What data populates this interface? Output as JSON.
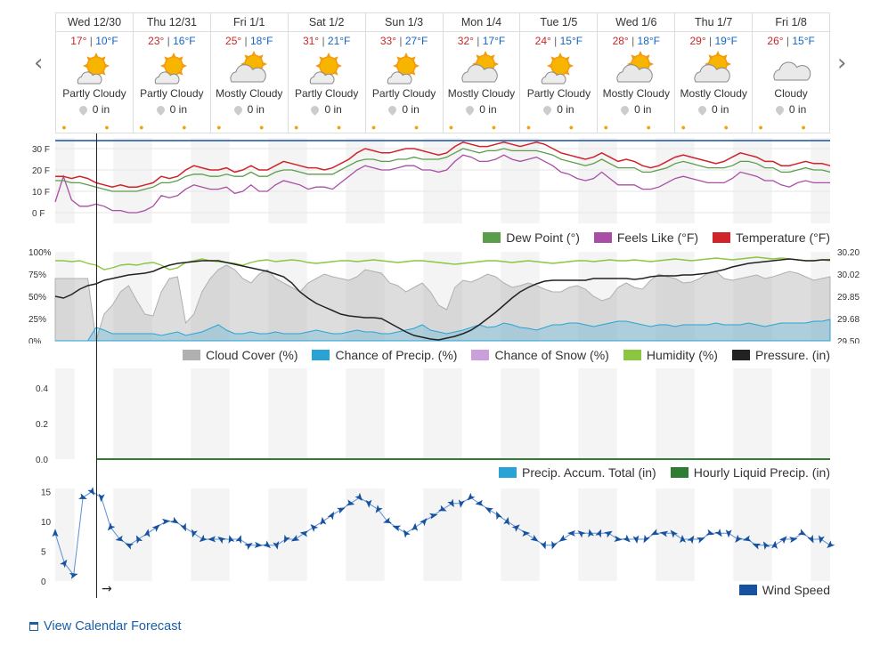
{
  "days": [
    {
      "date": "Wed 12/30",
      "hi": "17°",
      "lo": "10°F",
      "cond": "Partly Cloudy",
      "precip": "0 in",
      "icon": "partly-cloudy-icon"
    },
    {
      "date": "Thu 12/31",
      "hi": "23°",
      "lo": "16°F",
      "cond": "Partly Cloudy",
      "precip": "0 in",
      "icon": "partly-cloudy-icon"
    },
    {
      "date": "Fri 1/1",
      "hi": "25°",
      "lo": "18°F",
      "cond": "Mostly Cloudy",
      "precip": "0 in",
      "icon": "mostly-cloudy-icon"
    },
    {
      "date": "Sat 1/2",
      "hi": "31°",
      "lo": "21°F",
      "cond": "Partly Cloudy",
      "precip": "0 in",
      "icon": "partly-cloudy-icon"
    },
    {
      "date": "Sun 1/3",
      "hi": "33°",
      "lo": "27°F",
      "cond": "Partly Cloudy",
      "precip": "0 in",
      "icon": "partly-cloudy-icon"
    },
    {
      "date": "Mon 1/4",
      "hi": "32°",
      "lo": "17°F",
      "cond": "Mostly Cloudy",
      "precip": "0 in",
      "icon": "mostly-cloudy-icon"
    },
    {
      "date": "Tue 1/5",
      "hi": "24°",
      "lo": "15°F",
      "cond": "Partly Cloudy",
      "precip": "0 in",
      "icon": "partly-cloudy-icon"
    },
    {
      "date": "Wed 1/6",
      "hi": "28°",
      "lo": "18°F",
      "cond": "Mostly Cloudy",
      "precip": "0 in",
      "icon": "mostly-cloudy-icon"
    },
    {
      "date": "Thu 1/7",
      "hi": "29°",
      "lo": "19°F",
      "cond": "Mostly Cloudy",
      "precip": "0 in",
      "icon": "mostly-cloudy-icon"
    },
    {
      "date": "Fri 1/8",
      "hi": "26°",
      "lo": "15°F",
      "cond": "Cloudy",
      "precip": "0 in",
      "icon": "cloudy-icon"
    }
  ],
  "nav": {
    "prev": "‹",
    "next": "›"
  },
  "temp_chart": {
    "yticks": [
      "30 F",
      "20 F",
      "10 F",
      "0 F"
    ],
    "legend": [
      {
        "label": "Dew Point (°)",
        "color": "#5a9e4b"
      },
      {
        "label": "Feels Like (°F)",
        "color": "#a94ea5"
      },
      {
        "label": "Temperature (°F)",
        "color": "#d0232a"
      }
    ],
    "temperature": [
      17,
      17,
      16,
      17,
      16,
      14,
      13,
      12,
      13,
      12,
      12,
      13,
      14,
      17,
      16,
      17,
      20,
      22,
      21,
      20,
      20,
      21,
      19,
      20,
      22,
      20,
      20,
      22,
      24,
      23,
      22,
      21,
      21,
      20,
      21,
      23,
      25,
      28,
      30,
      29,
      28,
      28,
      29,
      30,
      30,
      29,
      28,
      27,
      28,
      31,
      33,
      32,
      31,
      31,
      32,
      33,
      32,
      31,
      32,
      33,
      32,
      30,
      28,
      27,
      26,
      25,
      26,
      28,
      26,
      24,
      25,
      24,
      22,
      21,
      22,
      24,
      26,
      27,
      26,
      25,
      24,
      23,
      24,
      26,
      28,
      27,
      26,
      24,
      24,
      22,
      22,
      23,
      24,
      23,
      23,
      22
    ],
    "dewpoint": [
      15,
      15,
      14,
      14,
      13,
      12,
      11,
      10,
      10,
      10,
      10,
      11,
      12,
      14,
      14,
      15,
      17,
      18,
      18,
      17,
      17,
      18,
      17,
      17,
      19,
      17,
      17,
      19,
      20,
      20,
      19,
      18,
      18,
      18,
      18,
      20,
      22,
      24,
      25,
      25,
      24,
      24,
      25,
      25,
      26,
      25,
      25,
      25,
      26,
      28,
      30,
      29,
      28,
      29,
      29,
      30,
      29,
      29,
      29,
      29,
      28,
      27,
      25,
      24,
      23,
      22,
      23,
      25,
      23,
      21,
      21,
      21,
      19,
      19,
      20,
      21,
      23,
      24,
      23,
      22,
      21,
      21,
      21,
      22,
      24,
      24,
      23,
      21,
      21,
      19,
      19,
      20,
      21,
      20,
      20,
      19
    ],
    "feelslike": [
      5,
      17,
      6,
      3,
      3,
      4,
      3,
      1,
      1,
      0,
      0,
      1,
      3,
      8,
      7,
      8,
      11,
      13,
      12,
      11,
      11,
      12,
      9,
      10,
      13,
      10,
      10,
      13,
      15,
      14,
      13,
      11,
      12,
      12,
      11,
      14,
      17,
      20,
      22,
      21,
      20,
      20,
      21,
      22,
      22,
      20,
      20,
      19,
      20,
      24,
      27,
      26,
      24,
      24,
      25,
      27,
      25,
      24,
      25,
      26,
      24,
      22,
      19,
      18,
      16,
      15,
      16,
      19,
      16,
      13,
      13,
      13,
      11,
      11,
      12,
      14,
      16,
      17,
      16,
      15,
      14,
      14,
      14,
      16,
      19,
      18,
      17,
      15,
      15,
      13,
      12,
      14,
      15,
      14,
      14,
      14
    ]
  },
  "cloud_chart": {
    "yticks_left": [
      "100%",
      "75%",
      "50%",
      "25%",
      "0%"
    ],
    "yticks_right": [
      "30.20",
      "30.02",
      "29.85",
      "29.68",
      "29.50"
    ],
    "legend": [
      {
        "label": "Cloud Cover (%)",
        "color": "#b0b0b0"
      },
      {
        "label": "Chance of Precip. (%)",
        "color": "#29a3d6"
      },
      {
        "label": "Chance of Snow (%)",
        "color": "#c9a0dc"
      },
      {
        "label": "Humidity (%)",
        "color": "#8cc63f"
      },
      {
        "label": "Pressure. (in)",
        "color": "#222222"
      }
    ],
    "cloud": [
      70,
      70,
      70,
      70,
      70,
      0,
      30,
      40,
      55,
      62,
      45,
      30,
      28,
      55,
      70,
      72,
      20,
      30,
      55,
      70,
      80,
      85,
      80,
      70,
      65,
      75,
      80,
      70,
      65,
      60,
      55,
      65,
      70,
      75,
      72,
      70,
      68,
      72,
      80,
      78,
      76,
      65,
      62,
      55,
      60,
      65,
      55,
      40,
      35,
      60,
      68,
      66,
      70,
      75,
      72,
      65,
      60,
      62,
      65,
      62,
      58,
      55,
      55,
      60,
      62,
      58,
      50,
      45,
      48,
      60,
      65,
      60,
      58,
      68,
      75,
      72,
      70,
      65,
      66,
      70,
      76,
      78,
      70,
      68,
      70,
      72,
      74,
      70,
      72,
      75,
      78,
      76,
      72,
      68,
      70,
      72
    ],
    "precip": [
      0,
      0,
      0,
      0,
      0,
      15,
      12,
      8,
      8,
      8,
      8,
      8,
      8,
      6,
      8,
      10,
      6,
      8,
      10,
      14,
      18,
      12,
      8,
      8,
      10,
      8,
      8,
      10,
      8,
      8,
      8,
      10,
      12,
      10,
      8,
      8,
      10,
      12,
      10,
      10,
      8,
      8,
      10,
      12,
      14,
      18,
      12,
      10,
      8,
      10,
      12,
      15,
      18,
      15,
      16,
      20,
      18,
      15,
      14,
      12,
      15,
      18,
      18,
      20,
      20,
      18,
      16,
      18,
      20,
      22,
      22,
      20,
      18,
      16,
      18,
      18,
      16,
      18,
      18,
      18,
      18,
      20,
      18,
      18,
      18,
      20,
      18,
      16,
      18,
      20,
      20,
      20,
      20,
      22,
      22,
      24
    ],
    "humidity": [
      90,
      90,
      89,
      90,
      87,
      85,
      80,
      82,
      85,
      86,
      85,
      87,
      88,
      85,
      80,
      82,
      88,
      90,
      92,
      90,
      89,
      88,
      87,
      85,
      88,
      90,
      91,
      89,
      90,
      91,
      90,
      88,
      87,
      88,
      89,
      90,
      90,
      89,
      90,
      91,
      90,
      89,
      88,
      89,
      90,
      90,
      89,
      88,
      87,
      86,
      87,
      88,
      89,
      90,
      90,
      89,
      88,
      89,
      90,
      89,
      88,
      87,
      88,
      89,
      90,
      90,
      89,
      90,
      91,
      90,
      90,
      91,
      90,
      89,
      90,
      91,
      92,
      91,
      90,
      91,
      92,
      93,
      92,
      91,
      92,
      93,
      94,
      93,
      92,
      93,
      92,
      91,
      90,
      90,
      91,
      90
    ],
    "pressure": [
      50,
      48,
      52,
      58,
      62,
      64,
      68,
      70,
      72,
      74,
      75,
      76,
      78,
      82,
      85,
      87,
      88,
      89,
      90,
      90,
      90,
      88,
      86,
      84,
      82,
      80,
      78,
      75,
      72,
      65,
      55,
      48,
      42,
      38,
      34,
      30,
      28,
      27,
      26,
      26,
      25,
      20,
      15,
      10,
      6,
      4,
      2,
      1,
      3,
      5,
      8,
      12,
      18,
      25,
      32,
      40,
      48,
      55,
      60,
      64,
      67,
      68,
      68,
      68,
      68,
      68,
      70,
      70,
      70,
      70,
      70,
      69,
      70,
      72,
      73,
      73,
      73,
      74,
      74,
      75,
      76,
      78,
      80,
      83,
      85,
      87,
      88,
      89,
      90,
      91,
      92,
      91,
      90,
      90,
      91,
      91
    ]
  },
  "accum_chart": {
    "yticks": [
      "0.4",
      "0.2",
      "0.0"
    ],
    "legend": [
      {
        "label": "Precip. Accum. Total (in)",
        "color": "#29a3d6"
      },
      {
        "label": "Hourly Liquid Precip. (in)",
        "color": "#2e7d32"
      }
    ]
  },
  "wind_chart": {
    "yticks": [
      "15",
      "10",
      "5",
      "0"
    ],
    "legend": [
      {
        "label": "Wind Speed",
        "color": "#1652a0"
      }
    ],
    "speed": [
      8,
      3,
      1,
      14,
      15,
      14,
      9,
      7,
      6,
      7,
      8,
      9,
      10,
      10,
      9,
      8,
      7,
      7,
      7,
      7,
      7,
      6,
      6,
      6,
      6,
      7,
      7,
      8,
      9,
      10,
      11,
      12,
      13,
      14,
      13,
      12,
      10,
      9,
      8,
      9,
      10,
      11,
      12,
      13,
      13,
      14,
      13,
      12,
      11,
      10,
      9,
      8,
      7,
      6,
      6,
      7,
      8,
      8,
      8,
      8,
      8,
      7,
      7,
      7,
      7,
      8,
      8,
      8,
      7,
      7,
      7,
      8,
      8,
      8,
      7,
      7,
      6,
      6,
      6,
      7,
      7,
      8,
      7,
      7,
      6
    ],
    "arrow_symbol": "→"
  },
  "link": {
    "calendar": "View Calendar Forecast"
  }
}
